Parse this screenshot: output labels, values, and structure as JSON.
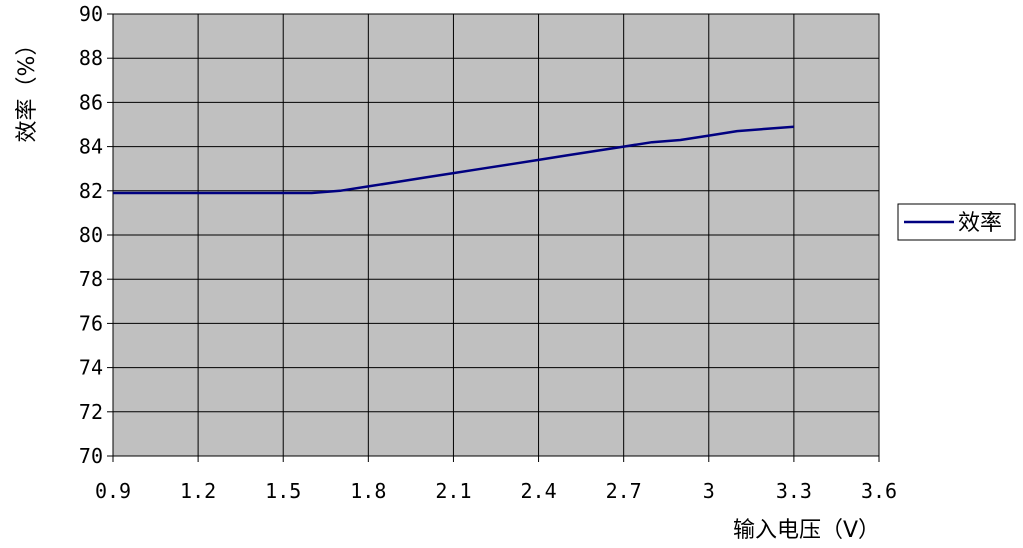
{
  "chart_data": {
    "type": "line",
    "title": "",
    "xlabel": "输入电压（V）",
    "ylabel": "效率（%）",
    "xlim": [
      0.9,
      3.6
    ],
    "ylim": [
      70,
      90
    ],
    "x_ticks": [
      "0.9",
      "1.2",
      "1.5",
      "1.8",
      "2.1",
      "2.4",
      "2.7",
      "3",
      "3.3",
      "3.6"
    ],
    "y_ticks": [
      "70",
      "72",
      "74",
      "76",
      "78",
      "80",
      "82",
      "84",
      "86",
      "88",
      "90"
    ],
    "grid": true,
    "legend": "right",
    "background_color": "#c0c0c0",
    "grid_color": "#000000",
    "series": [
      {
        "name": "效率",
        "color": "#000080",
        "points": [
          [
            0.9,
            81.9
          ],
          [
            1.0,
            81.9
          ],
          [
            1.1,
            81.9
          ],
          [
            1.2,
            81.9
          ],
          [
            1.3,
            81.9
          ],
          [
            1.4,
            81.9
          ],
          [
            1.5,
            81.9
          ],
          [
            1.6,
            81.9
          ],
          [
            1.7,
            82.0
          ],
          [
            1.8,
            82.2
          ],
          [
            1.9,
            82.4
          ],
          [
            2.0,
            82.6
          ],
          [
            2.1,
            82.8
          ],
          [
            2.2,
            83.0
          ],
          [
            2.3,
            83.2
          ],
          [
            2.4,
            83.4
          ],
          [
            2.5,
            83.6
          ],
          [
            2.6,
            83.8
          ],
          [
            2.7,
            84.0
          ],
          [
            2.8,
            84.2
          ],
          [
            2.9,
            84.3
          ],
          [
            3.0,
            84.5
          ],
          [
            3.1,
            84.7
          ],
          [
            3.2,
            84.8
          ],
          [
            3.3,
            84.9
          ]
        ]
      }
    ]
  }
}
